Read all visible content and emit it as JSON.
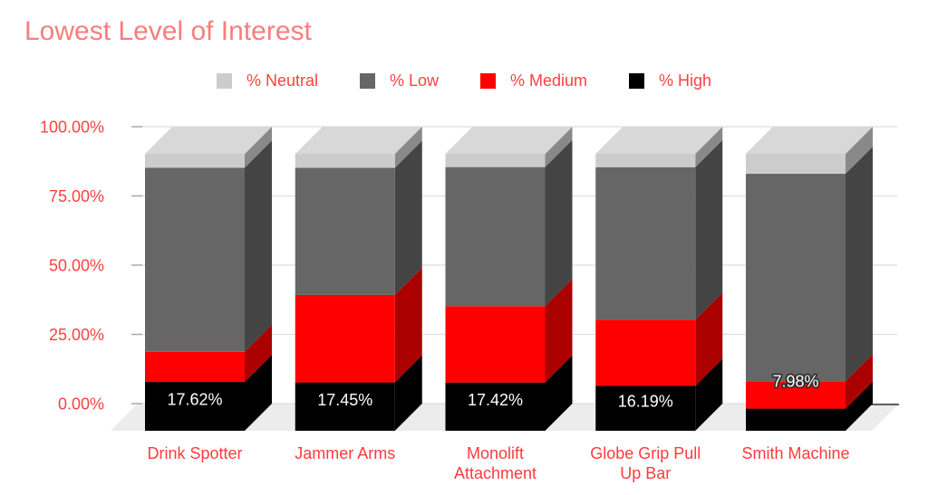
{
  "chart_data": {
    "type": "bar",
    "variant": "3d-stacked-column",
    "title": "Lowest Level of Interest",
    "stack_total": 100,
    "categories": [
      "Drink Spotter",
      "Jammer Arms",
      "Monolift Attachment",
      "Globe Grip Pull Up Bar",
      "Smith Machine"
    ],
    "category_label_lines": [
      [
        "Drink Spotter"
      ],
      [
        "Jammer Arms"
      ],
      [
        "Monolift",
        "Attachment"
      ],
      [
        "Globe Grip Pull",
        "Up Bar"
      ],
      [
        "Smith Machine"
      ]
    ],
    "series": [
      {
        "name": "% Neutral",
        "color": "#cccccc",
        "values": [
          4.98,
          5.05,
          4.78,
          4.81,
          7.2
        ]
      },
      {
        "name": "% Low",
        "color": "#666666",
        "values": [
          66.5,
          45.9,
          50.2,
          55.1,
          74.9
        ]
      },
      {
        "name": "% Medium",
        "color": "#ff0000",
        "values": [
          10.9,
          31.6,
          27.6,
          23.9,
          9.92
        ]
      },
      {
        "name": "% High",
        "color": "#000000",
        "values": [
          17.62,
          17.45,
          17.42,
          16.19,
          7.98
        ]
      }
    ],
    "stacking_order_bottom_to_top": [
      "% High",
      "% Medium",
      "% Low",
      "% Neutral"
    ],
    "data_labels": {
      "series": "% High",
      "values": [
        "17.62%",
        "17.45%",
        "17.42%",
        "16.19%",
        "7.98%"
      ]
    },
    "y_axis": {
      "min": 0,
      "max": 100,
      "ticks": [
        {
          "value": 0,
          "label": "0.00%"
        },
        {
          "value": 25,
          "label": "25.00%"
        },
        {
          "value": 50,
          "label": "50.00%"
        },
        {
          "value": 75,
          "label": "75.00%"
        },
        {
          "value": 100,
          "label": "100.00%"
        }
      ]
    },
    "legend_position": "top",
    "grid": true
  },
  "colors": {
    "title_text": "#f87d7d",
    "axis_text": "#ff4040",
    "category_text": "#ff3b3b",
    "legend_text": "#ff4040",
    "gridline": "#dedede",
    "tick": "#aaaaaa",
    "floor": "#ececec",
    "baseline_edge": "#616161",
    "data_label_text": "#ffffff",
    "background": "#ffffff"
  }
}
